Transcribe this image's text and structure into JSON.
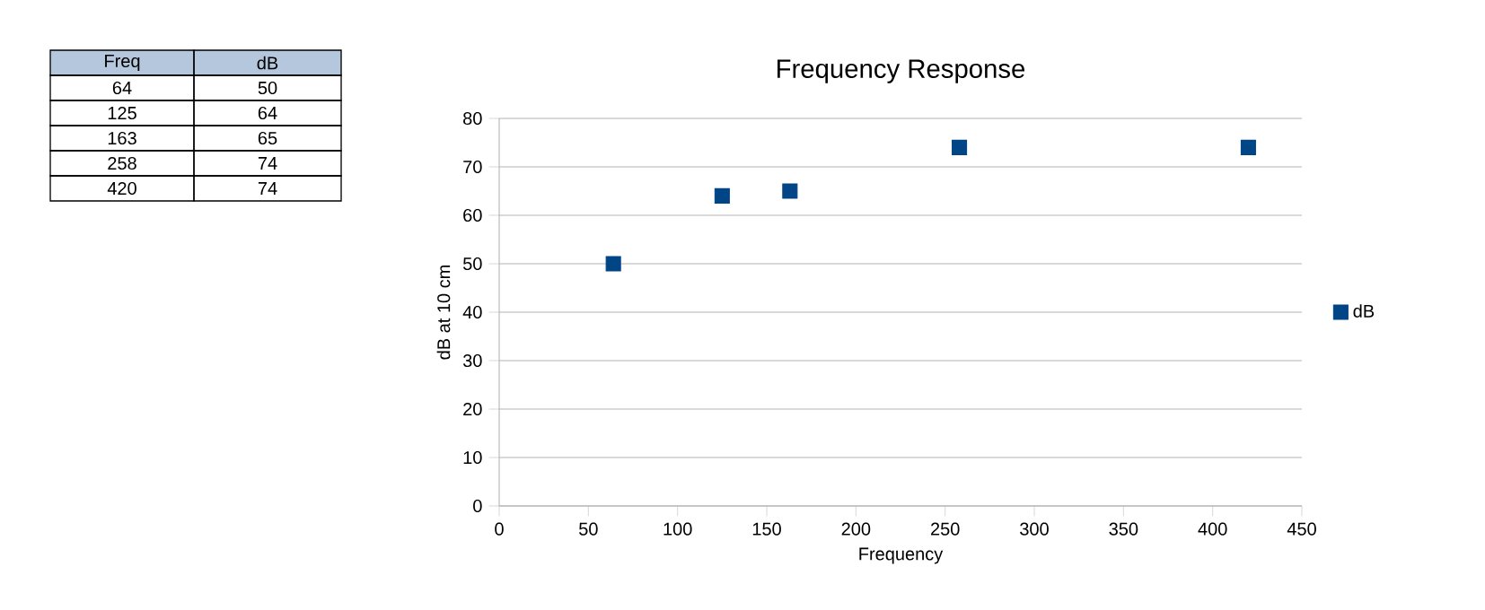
{
  "chart_data": [
    {
      "type": "other",
      "annotations": [
        "Freq",
        "dB",
        "64",
        "50",
        "125",
        "64",
        "163",
        "65",
        "258",
        "74",
        "420",
        "74"
      ]
    },
    {
      "type": "scatter",
      "title": "Frequency Response",
      "xlabel": "Frequency",
      "ylabel": "dB at 10 cm",
      "x": [
        64,
        125,
        163,
        258,
        420
      ],
      "series": [
        {
          "name": "dB",
          "color": "#004586",
          "values": [
            50,
            64,
            65,
            74,
            74
          ]
        }
      ],
      "xlim": [
        0,
        450
      ],
      "xticks": [
        0,
        50,
        100,
        150,
        200,
        250,
        300,
        350,
        400,
        450
      ],
      "ylim": [
        0,
        80
      ],
      "yticks": [
        0,
        10,
        20,
        30,
        40,
        50,
        60,
        70,
        80
      ],
      "grid": "y",
      "legend": "right",
      "marker": "square"
    }
  ]
}
